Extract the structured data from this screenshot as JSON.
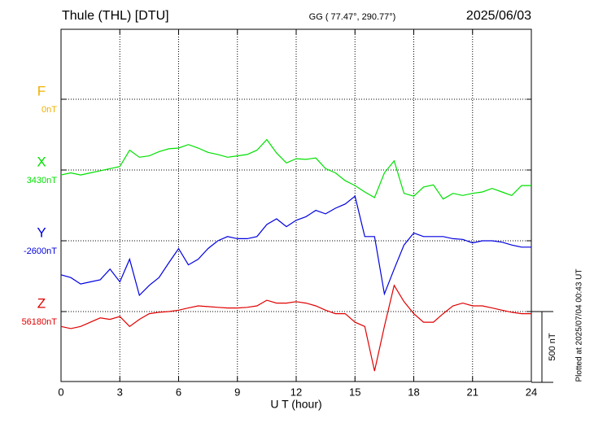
{
  "chart_data": {
    "type": "line",
    "title": "Thule (THL)  [DTU]",
    "subtitle": "GG ( 77.47°, 290.77°)",
    "date": "2025/06/03",
    "x_label": "U T (hour)",
    "note": "Plotted at 2025/07/04 00:43 UT",
    "scale_bar": {
      "value": 500,
      "label": "500 nT"
    },
    "xlim": [
      0,
      24
    ],
    "xticks": [
      0,
      3,
      6,
      9,
      12,
      15,
      18,
      21,
      24
    ],
    "grid": true,
    "x": [
      0,
      0.5,
      1,
      1.5,
      2,
      2.5,
      3,
      3.5,
      4,
      4.5,
      5,
      5.5,
      6,
      6.5,
      7,
      7.5,
      8,
      8.5,
      9,
      9.5,
      10,
      10.5,
      11,
      11.5,
      12,
      12.5,
      13,
      13.5,
      14,
      14.5,
      15,
      15.5,
      16,
      16.5,
      17,
      17.5,
      18,
      18.5,
      19,
      19.5,
      20,
      20.5,
      21,
      21.5,
      22,
      22.5,
      23,
      23.5,
      24
    ],
    "series": [
      {
        "name": "F",
        "color": "#f0b000",
        "baseline": {
          "value": 0,
          "label": "0nT"
        },
        "values": [
          null,
          null,
          null,
          null,
          null,
          null,
          null,
          null,
          null,
          null,
          null,
          null,
          null,
          null,
          null,
          null,
          null,
          null,
          null,
          null,
          null,
          null,
          null,
          null,
          null,
          null,
          null,
          null,
          null,
          null,
          null,
          null,
          null,
          null,
          null,
          null,
          null,
          null,
          null,
          null,
          null,
          null,
          null,
          null,
          null,
          null,
          null,
          null,
          null
        ]
      },
      {
        "name": "X",
        "color": "#00e000",
        "baseline": {
          "value": 3430,
          "label": "3430nT"
        },
        "values": [
          3395,
          3410,
          3395,
          3410,
          3425,
          3440,
          3455,
          3570,
          3520,
          3530,
          3560,
          3580,
          3585,
          3610,
          3585,
          3555,
          3540,
          3520,
          3530,
          3540,
          3570,
          3645,
          3550,
          3480,
          3510,
          3505,
          3515,
          3440,
          3410,
          3355,
          3320,
          3275,
          3235,
          3410,
          3495,
          3265,
          3245,
          3310,
          3325,
          3225,
          3265,
          3250,
          3265,
          3275,
          3300,
          3275,
          3250,
          3320,
          3320
        ]
      },
      {
        "name": "Y",
        "color": "#0000e0",
        "baseline": {
          "value": -2600,
          "label": "-2600nT"
        },
        "values": [
          -2840,
          -2860,
          -2905,
          -2890,
          -2875,
          -2800,
          -2890,
          -2730,
          -2985,
          -2915,
          -2860,
          -2755,
          -2655,
          -2770,
          -2730,
          -2655,
          -2600,
          -2570,
          -2585,
          -2585,
          -2570,
          -2485,
          -2445,
          -2500,
          -2455,
          -2430,
          -2385,
          -2410,
          -2370,
          -2340,
          -2285,
          -2570,
          -2570,
          -2975,
          -2800,
          -2630,
          -2545,
          -2570,
          -2570,
          -2570,
          -2585,
          -2590,
          -2615,
          -2600,
          -2600,
          -2610,
          -2630,
          -2645,
          -2645
        ]
      },
      {
        "name": "Z",
        "color": "#e00000",
        "baseline": {
          "value": 56180,
          "label": "56180nT"
        },
        "values": [
          56075,
          56060,
          56075,
          56105,
          56135,
          56125,
          56145,
          56075,
          56125,
          56165,
          56175,
          56180,
          56190,
          56205,
          56220,
          56215,
          56210,
          56205,
          56205,
          56210,
          56220,
          56260,
          56240,
          56240,
          56250,
          56240,
          56220,
          56190,
          56165,
          56165,
          56105,
          56075,
          55760,
          56075,
          56365,
          56250,
          56165,
          56105,
          56105,
          56165,
          56220,
          56240,
          56220,
          56220,
          56205,
          56190,
          56175,
          56165,
          56165
        ]
      }
    ]
  }
}
